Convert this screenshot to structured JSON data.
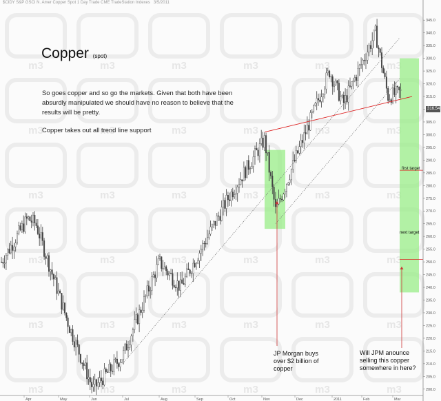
{
  "header": {
    "symbol_line": "$CIDY  S&P GSCI N. Amer Copper Spot  1 Day  Trade  CME  TradeStation  Indexes",
    "date": "3/5/2011"
  },
  "title": {
    "main": "Copper",
    "sub": "(spot)"
  },
  "commentary": {
    "paragraph1": "So goes copper and so go the markets. Given that both have been absurdly manipulated we should have no reason to believe that the results will be pretty.",
    "paragraph2": "Copper takes out all trend line support"
  },
  "annotations": {
    "jpm_buy": "JP Morgan buys over $2 billion of copper",
    "jpm_sell": "Will JPM anounce selling this copper somewhere in here?",
    "first_target": "first target",
    "next_target": "next target"
  },
  "watermark": "m3",
  "last_price_label": "316.54",
  "colors": {
    "highlight": "#99ee88",
    "trendline_red": "#dd2222",
    "arrow_red": "#cc3333",
    "candle": "#444444",
    "dotted_trend": "#777777"
  },
  "chart_data": {
    "type": "candlestick",
    "title": "Copper",
    "x_tick_labels": [
      "Apr",
      "May",
      "Jun",
      "Jul",
      "Aug",
      "Sep",
      "Oct",
      "Nov",
      "Dec",
      "2011",
      "Feb",
      "Mar"
    ],
    "y_tick_labels": [
      "200.0",
      "205.0",
      "210.0",
      "215.0",
      "220.0",
      "225.0",
      "230.0",
      "235.0",
      "240.0",
      "245.0",
      "250.0",
      "255.0",
      "260.0",
      "265.0",
      "270.0",
      "275.0",
      "280.0",
      "285.0",
      "290.0",
      "295.0",
      "300.0",
      "305.0",
      "310.0",
      "315.0",
      "320.0",
      "325.0",
      "330.0",
      "335.0",
      "340.0",
      "345.0"
    ],
    "ylim": [
      197.5,
      347.5
    ],
    "price_path_key_points": [
      {
        "date": "Mar 2010",
        "value": 250
      },
      {
        "date": "mid Apr",
        "value": 267
      },
      {
        "date": "late Apr",
        "value": 265
      },
      {
        "date": "mid May",
        "value": 225
      },
      {
        "date": "early Jun",
        "value": 200
      },
      {
        "date": "early Jul",
        "value": 213
      },
      {
        "date": "early Aug",
        "value": 250
      },
      {
        "date": "mid Aug",
        "value": 240
      },
      {
        "date": "early Oct",
        "value": 275
      },
      {
        "date": "early Nov",
        "value": 298
      },
      {
        "date": "mid Nov",
        "value": 270
      },
      {
        "date": "early Dec",
        "value": 290
      },
      {
        "date": "early Jan 2011",
        "value": 325
      },
      {
        "date": "mid Jan",
        "value": 312
      },
      {
        "date": "mid Feb",
        "value": 340
      },
      {
        "date": "late Feb",
        "value": 315
      },
      {
        "date": "early Mar",
        "value": 316.54
      }
    ],
    "red_trendline": {
      "from": {
        "date": "early Nov",
        "value": 301
      },
      "to": {
        "date": "early Mar",
        "value": 315
      }
    },
    "dotted_trendlines": [
      {
        "from": {
          "date": "early Jul",
          "value": 210
        },
        "to": {
          "date": "early Mar",
          "value": 338
        }
      },
      {
        "from": {
          "date": "mid Nov",
          "value": 265
        },
        "to": {
          "date": "early Mar",
          "value": 322
        }
      }
    ],
    "highlight_zones": [
      {
        "name": "JP Morgan buys",
        "x_range": [
          "early Nov",
          "mid Nov"
        ],
        "y_range": [
          263,
          294
        ]
      },
      {
        "name": "sell zone",
        "x_range": [
          "early Mar",
          "mid Mar"
        ],
        "y_range": [
          238,
          330
        ]
      }
    ],
    "target_levels": [
      {
        "name": "first target",
        "value": 286
      },
      {
        "name": "next target",
        "value": 251
      }
    ],
    "grid": false
  }
}
